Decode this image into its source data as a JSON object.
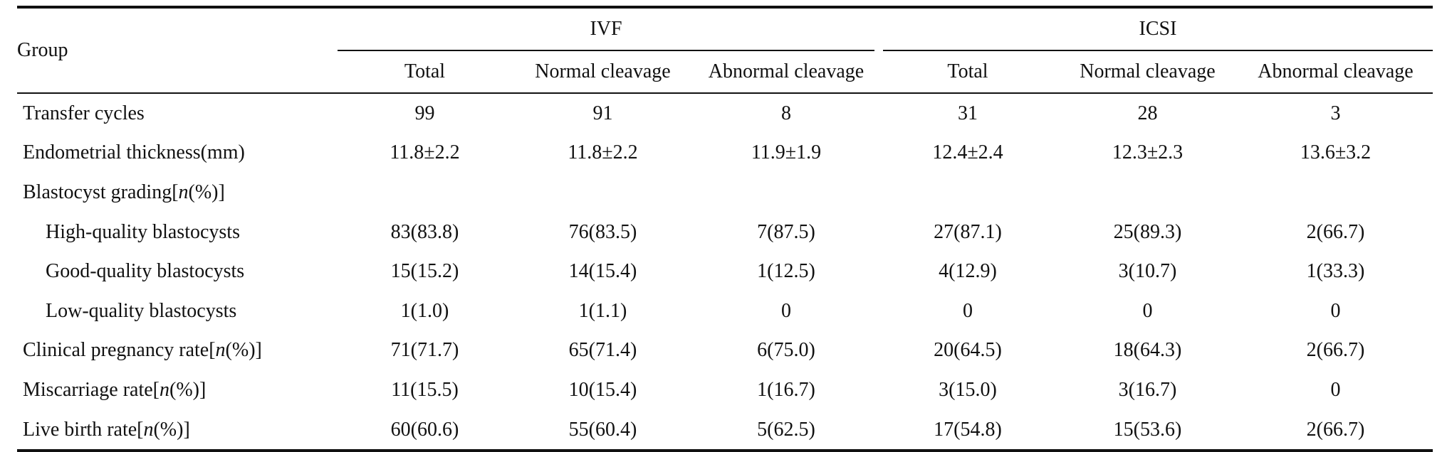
{
  "header": {
    "group_label": "Group",
    "ivf": "IVF",
    "icsi": "ICSI",
    "sub": [
      "Total",
      "Normal cleavage",
      "Abnormal cleavage",
      "Total",
      "Normal cleavage",
      "Abnormal cleavage"
    ]
  },
  "rows": [
    {
      "label": "Transfer cycles",
      "values": [
        "99",
        "91",
        "8",
        "31",
        "28",
        "3"
      ]
    },
    {
      "label": "Endometrial thickness(mm)",
      "values": [
        "11.8±2.2",
        "11.8±2.2",
        "11.9±1.9",
        "12.4±2.4",
        "12.3±2.3",
        "13.6±3.2"
      ]
    },
    {
      "label_pre": "Blastocyst grading[",
      "label_n": "n",
      "label_post": "(%)]",
      "values": [
        "",
        "",
        "",
        "",
        "",
        ""
      ]
    },
    {
      "label": "High-quality blastocysts",
      "values": [
        "83(83.8)",
        "76(83.5)",
        "7(87.5)",
        "27(87.1)",
        "25(89.3)",
        "2(66.7)"
      ]
    },
    {
      "label": "Good-quality blastocysts",
      "values": [
        "15(15.2)",
        "14(15.4)",
        "1(12.5)",
        "4(12.9)",
        "3(10.7)",
        "1(33.3)"
      ]
    },
    {
      "label": "Low-quality blastocysts",
      "values": [
        "1(1.0)",
        "1(1.1)",
        "0",
        "0",
        "0",
        "0"
      ]
    },
    {
      "label_pre": "Clinical pregnancy rate[",
      "label_n": "n",
      "label_post": "(%)]",
      "values": [
        "71(71.7)",
        "65(71.4)",
        "6(75.0)",
        "20(64.5)",
        "18(64.3)",
        "2(66.7)"
      ]
    },
    {
      "label_pre": "Miscarriage rate[",
      "label_n": "n",
      "label_post": "(%)]",
      "values": [
        "11(15.5)",
        "10(15.4)",
        "1(16.7)",
        "3(15.0)",
        "3(16.7)",
        "0"
      ]
    },
    {
      "label_pre": "Live birth rate[",
      "label_n": "n",
      "label_post": "(%)]",
      "values": [
        "60(60.6)",
        "55(60.4)",
        "5(62.5)",
        "17(54.8)",
        "15(53.6)",
        "2(66.7)"
      ]
    }
  ]
}
